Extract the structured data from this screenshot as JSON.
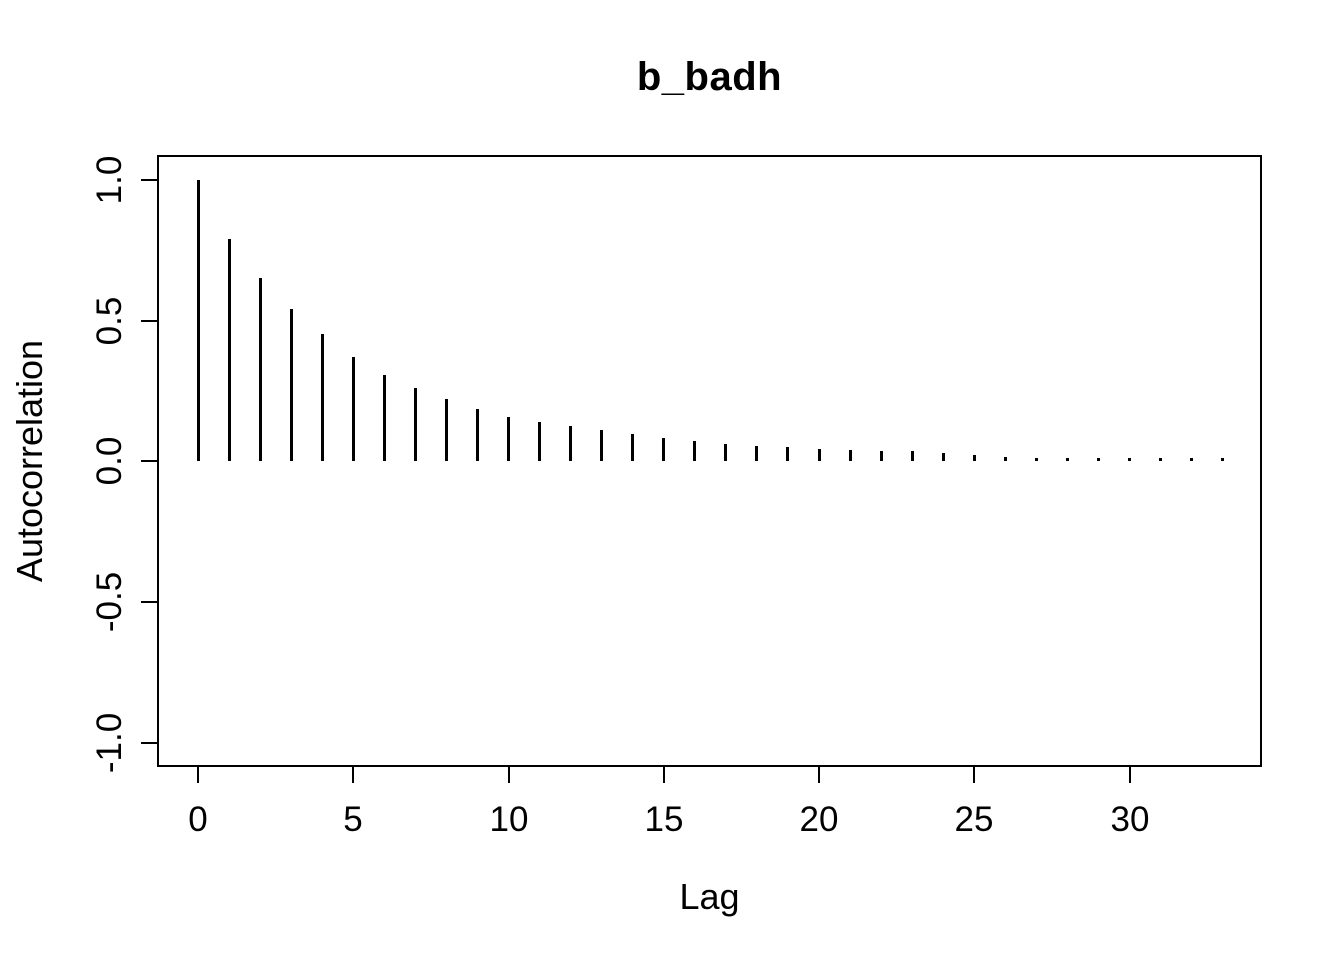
{
  "colors": {
    "background": "#ffffff",
    "foreground": "#000000"
  },
  "chart_data": {
    "type": "bar",
    "subtype": "acf-stem-plot",
    "title": "b_badh",
    "xlabel": "Lag",
    "ylabel": "Autocorrelation",
    "x": [
      0,
      1,
      2,
      3,
      4,
      5,
      6,
      7,
      8,
      9,
      10,
      11,
      12,
      13,
      14,
      15,
      16,
      17,
      18,
      19,
      20,
      21,
      22,
      23,
      24,
      25,
      26,
      27,
      28,
      29,
      30,
      31,
      32,
      33
    ],
    "values": [
      1.0,
      0.79,
      0.65,
      0.54,
      0.45,
      0.37,
      0.305,
      0.26,
      0.22,
      0.185,
      0.155,
      0.14,
      0.125,
      0.11,
      0.095,
      0.082,
      0.07,
      0.06,
      0.053,
      0.048,
      0.044,
      0.04,
      0.037,
      0.034,
      0.03,
      0.022,
      0.015,
      0.012,
      0.011,
      0.011,
      0.011,
      0.01,
      0.009,
      0.009
    ],
    "xlim": [
      -1.3,
      34.3
    ],
    "ylim": [
      -1.088,
      1.088
    ],
    "xticks": [
      0,
      5,
      10,
      15,
      20,
      25,
      30
    ],
    "xtick_labels": [
      "0",
      "5",
      "10",
      "15",
      "20",
      "25",
      "30"
    ],
    "yticks": [
      1.0,
      0.5,
      0.0,
      -0.5,
      -1.0
    ],
    "ytick_labels": [
      "1.0",
      "0.5",
      "0.0",
      "-0.5",
      "-1.0"
    ],
    "grid": false,
    "legend": false,
    "bar_color": "#000000",
    "frame": true
  }
}
